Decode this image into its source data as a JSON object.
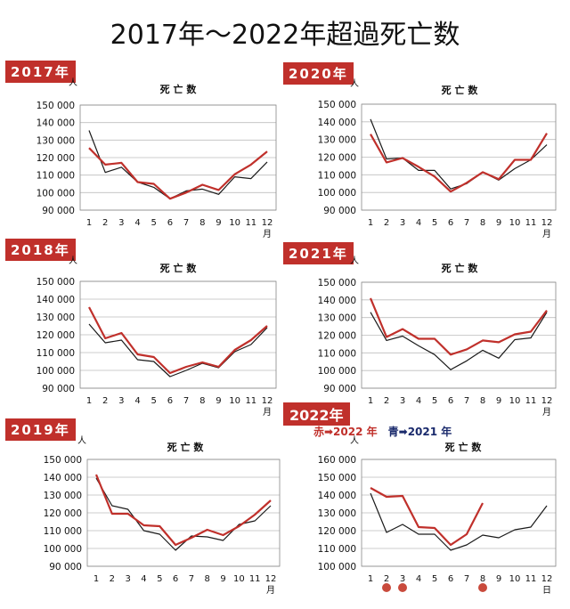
{
  "title": "2017年～2022年超過死亡数",
  "legend_2022": {
    "red": "赤➡2022 年",
    "blue": "青➡2021 年"
  },
  "chart_data": [
    {
      "type": "line",
      "year_label": "2017年",
      "title": "死 亡 数",
      "ylabel": "人",
      "xlabel": "月",
      "y_ticks": [
        "150 000",
        "140 000",
        "130 000",
        "120 000",
        "110 000",
        "100 000",
        "90 000"
      ],
      "ylim": [
        90000,
        150000
      ],
      "categories": [
        "1",
        "2",
        "3",
        "4",
        "5",
        "6",
        "7",
        "8",
        "9",
        "10",
        "11",
        "12"
      ],
      "series": [
        {
          "color": "#1a1a1a",
          "values": [
            135500,
            111500,
            114500,
            106000,
            103000,
            96500,
            101000,
            102000,
            99000,
            109000,
            108000,
            117500
          ]
        },
        {
          "color": "#c0302b",
          "values": [
            125500,
            116000,
            117000,
            106000,
            105000,
            96500,
            100000,
            104500,
            101500,
            110500,
            116000,
            123500
          ]
        }
      ]
    },
    {
      "type": "line",
      "year_label": "2020年",
      "title": "死 亡 数",
      "ylabel": "人",
      "xlabel": "月",
      "y_ticks": [
        "150 000",
        "140 000",
        "130 000",
        "120 000",
        "110 000",
        "100 000",
        "90 000"
      ],
      "ylim": [
        90000,
        150000
      ],
      "categories": [
        "1",
        "2",
        "3",
        "4",
        "5",
        "6",
        "7",
        "8",
        "9",
        "10",
        "11",
        "12"
      ],
      "series": [
        {
          "color": "#1a1a1a",
          "values": [
            141500,
            119000,
            119500,
            112500,
            112500,
            102000,
            105000,
            111500,
            107000,
            113500,
            118500,
            127000
          ]
        },
        {
          "color": "#c0302b",
          "values": [
            133000,
            117000,
            119500,
            114500,
            109000,
            100500,
            105500,
            111500,
            107500,
            118500,
            118500,
            133500
          ]
        }
      ]
    },
    {
      "type": "line",
      "year_label": "2018年",
      "title": "死 亡 数",
      "ylabel": "人",
      "xlabel": "月",
      "y_ticks": [
        "150 000",
        "140 000",
        "130 000",
        "120 000",
        "110 000",
        "100 000",
        "90 000"
      ],
      "ylim": [
        90000,
        150000
      ],
      "categories": [
        "1",
        "2",
        "3",
        "4",
        "5",
        "6",
        "7",
        "8",
        "9",
        "10",
        "11",
        "12"
      ],
      "series": [
        {
          "color": "#1a1a1a",
          "values": [
            126000,
            115500,
            117000,
            106000,
            105000,
            96500,
            100000,
            104000,
            101500,
            110500,
            114500,
            124000
          ]
        },
        {
          "color": "#c0302b",
          "values": [
            135500,
            118000,
            121000,
            109000,
            107500,
            98500,
            102000,
            104500,
            102000,
            111500,
            117000,
            125000
          ]
        }
      ]
    },
    {
      "type": "line",
      "year_label": "2021年",
      "title": "死 亡 数",
      "ylabel": "人",
      "xlabel": "月",
      "y_ticks": [
        "150 000",
        "140 000",
        "130 000",
        "120 000",
        "110 000",
        "100 000",
        "90 000"
      ],
      "ylim": [
        90000,
        150000
      ],
      "categories": [
        "1",
        "2",
        "3",
        "4",
        "5",
        "6",
        "7",
        "8",
        "9",
        "10",
        "11",
        "12"
      ],
      "series": [
        {
          "color": "#1a1a1a",
          "values": [
            133000,
            117000,
            119500,
            114000,
            109000,
            100500,
            105500,
            111500,
            107000,
            117500,
            118500,
            133000
          ]
        },
        {
          "color": "#c0302b",
          "values": [
            141000,
            119000,
            123500,
            118000,
            118000,
            109000,
            112000,
            117000,
            116000,
            120500,
            122000,
            134000
          ]
        }
      ]
    },
    {
      "type": "line",
      "year_label": "2019年",
      "title": "死 亡 数",
      "ylabel": "人",
      "xlabel": "月",
      "y_ticks": [
        "150 000",
        "140 000",
        "130 000",
        "120 000",
        "110 000",
        "100 000",
        "90 000"
      ],
      "ylim": [
        90000,
        150000
      ],
      "categories": [
        "1",
        "2",
        "3",
        "4",
        "5",
        "6",
        "7",
        "8",
        "9",
        "10",
        "11",
        "12"
      ],
      "series": [
        {
          "color": "#1a1a1a",
          "values": [
            139500,
            124000,
            122000,
            110000,
            108000,
            99000,
            107000,
            106500,
            104500,
            113500,
            115500,
            124000
          ]
        },
        {
          "color": "#c0302b",
          "values": [
            141500,
            119500,
            119500,
            113000,
            112500,
            102000,
            106000,
            110500,
            107500,
            112500,
            119000,
            127000
          ]
        }
      ]
    },
    {
      "type": "line",
      "year_label": "2022年",
      "title": "死 亡 数",
      "ylabel": "人",
      "xlabel": "日",
      "y_ticks": [
        "160 000",
        "150 000",
        "140 000",
        "130 000",
        "120 000",
        "110 000",
        "100 000"
      ],
      "ylim": [
        100000,
        160000
      ],
      "categories": [
        "1",
        "2",
        "3",
        "4",
        "5",
        "6",
        "7",
        "8",
        "9",
        "10",
        "11",
        "12"
      ],
      "highlight_months": [
        2,
        3,
        8
      ],
      "series": [
        {
          "color": "#1a1a1a",
          "values": [
            141000,
            119000,
            123500,
            118000,
            118000,
            109000,
            112000,
            117500,
            116000,
            120500,
            122000,
            134000
          ]
        },
        {
          "color": "#c0302b",
          "values": [
            144000,
            139000,
            139500,
            122000,
            121500,
            112000,
            118000,
            135500,
            null,
            null,
            null,
            null
          ]
        }
      ]
    }
  ]
}
